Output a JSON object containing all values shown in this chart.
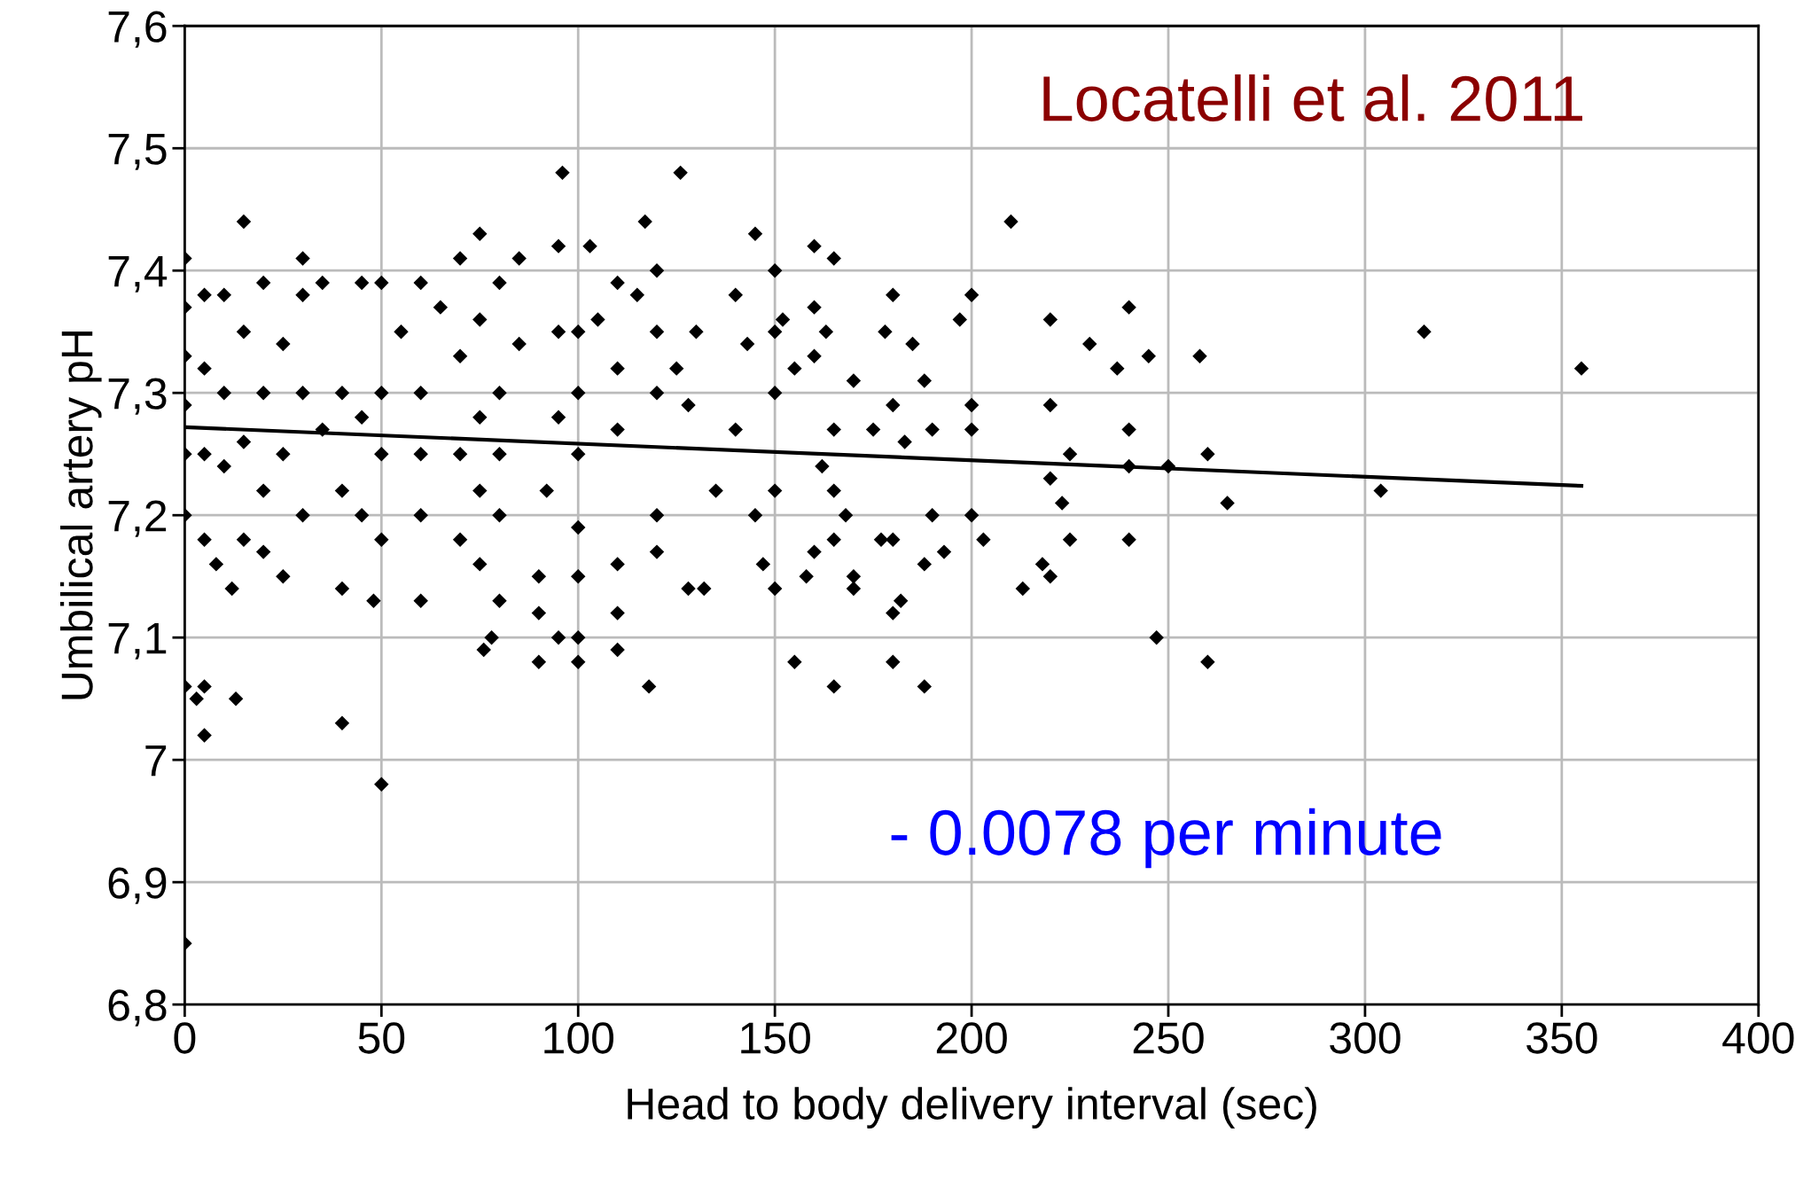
{
  "chart_data": {
    "type": "scatter",
    "xlabel": "Head to body delivery interval (sec)",
    "ylabel": "Umbilical artery pH",
    "annotations": [
      "Locatelli et al. 2011",
      "- 0.0078 per minute"
    ],
    "xlim": [
      0,
      400
    ],
    "xticks": [
      0,
      50,
      100,
      150,
      200,
      250,
      300,
      350,
      400
    ],
    "ylim": [
      6.8,
      7.6
    ],
    "yticks": [
      {
        "value": 6.8,
        "label": "6,8"
      },
      {
        "value": 6.9,
        "label": "6,9"
      },
      7,
      {
        "value": 7.1,
        "label": "7,1"
      },
      {
        "value": 7.2,
        "label": "7,2"
      },
      {
        "value": 7.3,
        "label": "7,3"
      },
      {
        "value": 7.4,
        "label": "7,4"
      },
      {
        "value": 7.5,
        "label": "7,5"
      },
      {
        "value": 7.6,
        "label": "7,6"
      }
    ],
    "grid": true,
    "legend": false,
    "series": [
      {
        "color": "#000000",
        "marker": "diamond",
        "x": [
          0,
          50,
          5,
          40,
          0,
          5,
          3,
          13,
          118,
          165,
          188,
          155,
          180,
          260,
          90,
          100,
          247,
          95,
          100,
          110,
          76,
          78,
          96,
          126,
          210,
          15,
          117,
          75,
          145,
          0,
          30,
          355,
          315,
          304,
          265,
          260,
          258,
          250,
          240,
          240,
          240,
          240,
          245,
          237,
          230,
          225,
          225,
          223,
          220,
          220,
          220,
          220,
          218,
          213,
          203,
          200,
          200,
          200,
          200,
          197,
          193,
          190,
          190,
          188,
          188,
          185,
          183,
          182,
          180,
          180,
          180,
          178,
          180,
          177,
          175,
          170,
          168,
          170,
          170,
          165,
          160,
          160,
          163,
          160,
          165,
          162,
          165,
          165,
          160,
          158,
          155,
          152,
          150,
          150,
          150,
          150,
          150,
          147,
          145,
          143,
          140,
          140,
          135,
          130,
          128,
          128,
          132,
          125,
          120,
          120,
          120,
          120,
          120,
          115,
          110,
          110,
          110,
          110,
          110,
          105,
          103,
          100,
          100,
          100,
          100,
          100,
          95,
          95,
          95,
          92,
          90,
          90,
          85,
          85,
          80,
          80,
          80,
          80,
          80,
          75,
          75,
          75,
          75,
          70,
          70,
          70,
          70,
          65,
          60,
          60,
          60,
          60,
          60,
          55,
          50,
          50,
          50,
          50,
          48,
          45,
          45,
          45,
          40,
          40,
          40,
          35,
          35,
          30,
          30,
          30,
          25,
          25,
          25,
          20,
          20,
          20,
          20,
          15,
          15,
          15,
          10,
          10,
          10,
          8,
          12,
          5,
          5,
          5,
          5,
          0,
          0,
          0,
          0,
          0
        ],
        "values": [
          6.85,
          6.98,
          7.02,
          7.03,
          7.06,
          7.06,
          7.05,
          7.05,
          7.06,
          7.06,
          7.06,
          7.08,
          7.08,
          7.08,
          7.08,
          7.08,
          7.1,
          7.1,
          7.1,
          7.09,
          7.09,
          7.1,
          7.48,
          7.48,
          7.44,
          7.44,
          7.44,
          7.43,
          7.43,
          7.41,
          7.41,
          7.32,
          7.35,
          7.22,
          7.21,
          7.25,
          7.33,
          7.24,
          7.37,
          7.27,
          7.24,
          7.18,
          7.33,
          7.32,
          7.34,
          7.25,
          7.18,
          7.21,
          7.36,
          7.29,
          7.23,
          7.15,
          7.16,
          7.14,
          7.18,
          7.38,
          7.29,
          7.27,
          7.2,
          7.36,
          7.17,
          7.27,
          7.2,
          7.16,
          7.31,
          7.34,
          7.26,
          7.13,
          7.12,
          7.38,
          7.29,
          7.35,
          7.18,
          7.18,
          7.27,
          7.31,
          7.2,
          7.15,
          7.14,
          7.41,
          7.42,
          7.37,
          7.35,
          7.33,
          7.27,
          7.24,
          7.22,
          7.18,
          7.17,
          7.15,
          7.32,
          7.36,
          7.4,
          7.35,
          7.3,
          7.22,
          7.14,
          7.16,
          7.2,
          7.34,
          7.38,
          7.27,
          7.22,
          7.35,
          7.29,
          7.14,
          7.14,
          7.32,
          7.4,
          7.35,
          7.3,
          7.2,
          7.17,
          7.38,
          7.39,
          7.32,
          7.27,
          7.16,
          7.12,
          7.36,
          7.42,
          7.35,
          7.3,
          7.25,
          7.19,
          7.15,
          7.42,
          7.35,
          7.28,
          7.22,
          7.15,
          7.12,
          7.41,
          7.34,
          7.39,
          7.3,
          7.25,
          7.2,
          7.13,
          7.36,
          7.28,
          7.22,
          7.16,
          7.41,
          7.33,
          7.25,
          7.18,
          7.37,
          7.39,
          7.3,
          7.25,
          7.2,
          7.13,
          7.35,
          7.39,
          7.3,
          7.25,
          7.18,
          7.13,
          7.39,
          7.28,
          7.2,
          7.3,
          7.22,
          7.14,
          7.39,
          7.27,
          7.38,
          7.3,
          7.2,
          7.34,
          7.25,
          7.15,
          7.39,
          7.3,
          7.22,
          7.17,
          7.35,
          7.26,
          7.18,
          7.38,
          7.3,
          7.24,
          7.16,
          7.14,
          7.38,
          7.32,
          7.25,
          7.18,
          7.37,
          7.33,
          7.29,
          7.25,
          7.2
        ]
      },
      {
        "type": "line",
        "color": "#000000",
        "marker": "none",
        "line_style": "solid",
        "x": [
          0,
          355
        ],
        "values": [
          7.272,
          7.224
        ]
      }
    ]
  }
}
